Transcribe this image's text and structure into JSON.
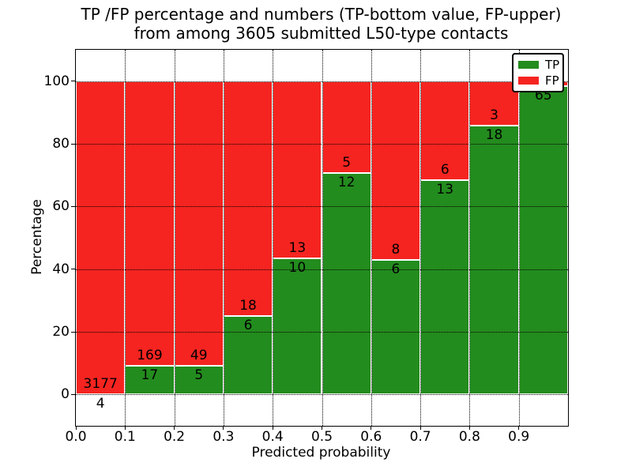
{
  "figure": {
    "title_line1": "TP /FP percentage and numbers (TP-bottom value, FP-upper)",
    "title_line2": "from among 3605 submitted L50-type contacts"
  },
  "chart_data": {
    "type": "bar",
    "stacking": "percentage-stacked",
    "title": "TP /FP percentage and numbers (TP-bottom value, FP-upper) from among 3605 submitted L50-type contacts",
    "total_contacts": 3605,
    "xlabel": "Predicted probability",
    "ylabel": "Percentage",
    "xlim": [
      0.0,
      1.0
    ],
    "ylim": [
      -10,
      110
    ],
    "x_ticks": [
      {
        "value": 0.0,
        "label": "0.0"
      },
      {
        "value": 0.1,
        "label": "0.1"
      },
      {
        "value": 0.2,
        "label": "0.2"
      },
      {
        "value": 0.3,
        "label": "0.3"
      },
      {
        "value": 0.4,
        "label": "0.4"
      },
      {
        "value": 0.5,
        "label": "0.5"
      },
      {
        "value": 0.6,
        "label": "0.6"
      },
      {
        "value": 0.7,
        "label": "0.7"
      },
      {
        "value": 0.8,
        "label": "0.8"
      },
      {
        "value": 0.9,
        "label": "0.9"
      }
    ],
    "y_ticks": [
      {
        "value": 0,
        "label": "0"
      },
      {
        "value": 20,
        "label": "20"
      },
      {
        "value": 40,
        "label": "40"
      },
      {
        "value": 60,
        "label": "60"
      },
      {
        "value": 80,
        "label": "80"
      },
      {
        "value": 100,
        "label": "100"
      }
    ],
    "grid": "dotted-black-on-top",
    "legend": {
      "position": "upper-right",
      "entries": [
        {
          "label": "TP",
          "color": "#238c1e"
        },
        {
          "label": "FP",
          "color": "#f52420"
        }
      ]
    },
    "colors": {
      "tp": "#238c1e",
      "fp": "#f52420",
      "bar_edge": "#ffffff",
      "grid": "#000000"
    },
    "bins": [
      {
        "x0": 0.0,
        "x1": 0.1,
        "tp_count": 4,
        "fp_count": 3177,
        "tp_pct": 0.13,
        "fp_pct": 99.87,
        "tp_label": "4",
        "fp_label": "3177"
      },
      {
        "x0": 0.1,
        "x1": 0.2,
        "tp_count": 17,
        "fp_count": 169,
        "tp_pct": 9.14,
        "fp_pct": 90.86,
        "tp_label": "17",
        "fp_label": "169"
      },
      {
        "x0": 0.2,
        "x1": 0.3,
        "tp_count": 5,
        "fp_count": 49,
        "tp_pct": 9.26,
        "fp_pct": 90.74,
        "tp_label": "5",
        "fp_label": "49"
      },
      {
        "x0": 0.3,
        "x1": 0.4,
        "tp_count": 6,
        "fp_count": 18,
        "tp_pct": 25.0,
        "fp_pct": 75.0,
        "tp_label": "6",
        "fp_label": "18"
      },
      {
        "x0": 0.4,
        "x1": 0.5,
        "tp_count": 10,
        "fp_count": 13,
        "tp_pct": 43.48,
        "fp_pct": 56.52,
        "tp_label": "10",
        "fp_label": "13"
      },
      {
        "x0": 0.5,
        "x1": 0.6,
        "tp_count": 12,
        "fp_count": 5,
        "tp_pct": 70.59,
        "fp_pct": 29.41,
        "tp_label": "12",
        "fp_label": "5"
      },
      {
        "x0": 0.6,
        "x1": 0.7,
        "tp_count": 6,
        "fp_count": 8,
        "tp_pct": 42.86,
        "fp_pct": 57.14,
        "tp_label": "6",
        "fp_label": "8"
      },
      {
        "x0": 0.7,
        "x1": 0.8,
        "tp_count": 13,
        "fp_count": 6,
        "tp_pct": 68.42,
        "fp_pct": 31.58,
        "tp_label": "13",
        "fp_label": "6"
      },
      {
        "x0": 0.8,
        "x1": 0.9,
        "tp_count": 18,
        "fp_count": 3,
        "tp_pct": 85.71,
        "fp_pct": 14.29,
        "tp_label": "18",
        "fp_label": "3"
      },
      {
        "x0": 0.9,
        "x1": 1.0,
        "tp_count": 65,
        "tp_pct": 98.48,
        "fp_pct": 1.52,
        "tp_label": "65",
        "fp_label": ""
      }
    ]
  }
}
